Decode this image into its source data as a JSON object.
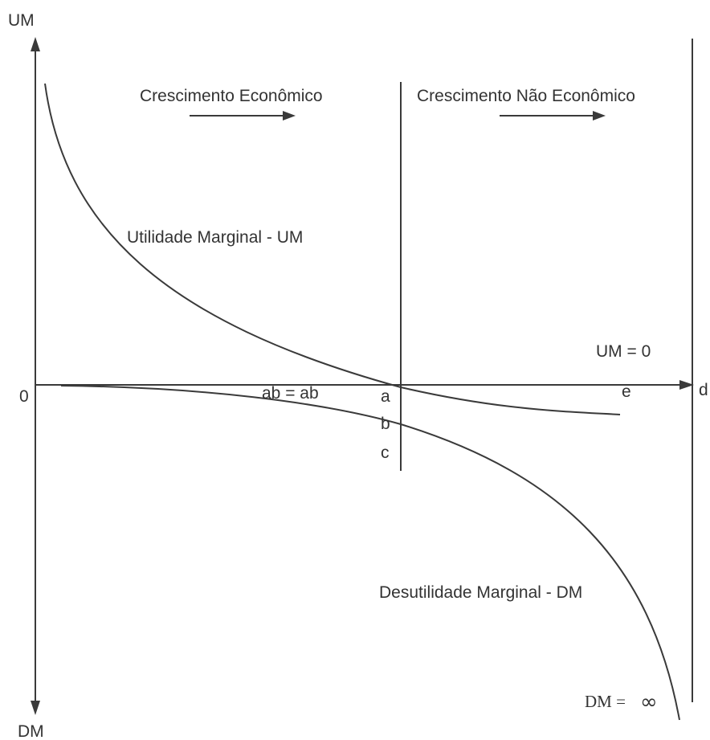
{
  "axes": {
    "y_top_label": "UM",
    "y_bottom_label": "DM",
    "origin_label": "0",
    "x_end_label": "d"
  },
  "regions": {
    "economic": "Crescimento Econômico",
    "non_economic": "Crescimento Não Econômico"
  },
  "curves": {
    "marginal_utility": "Utilidade Marginal - UM",
    "marginal_disutility": "Desutilidade Marginal - DM"
  },
  "annotations": {
    "um_zero": "UM = 0",
    "dm_infinity_prefix": "DM =",
    "dm_infinity_symbol": "∞",
    "ab_equality": "ab = ab",
    "point_a": "a",
    "point_b": "b",
    "point_c": "c",
    "point_e": "e"
  }
}
